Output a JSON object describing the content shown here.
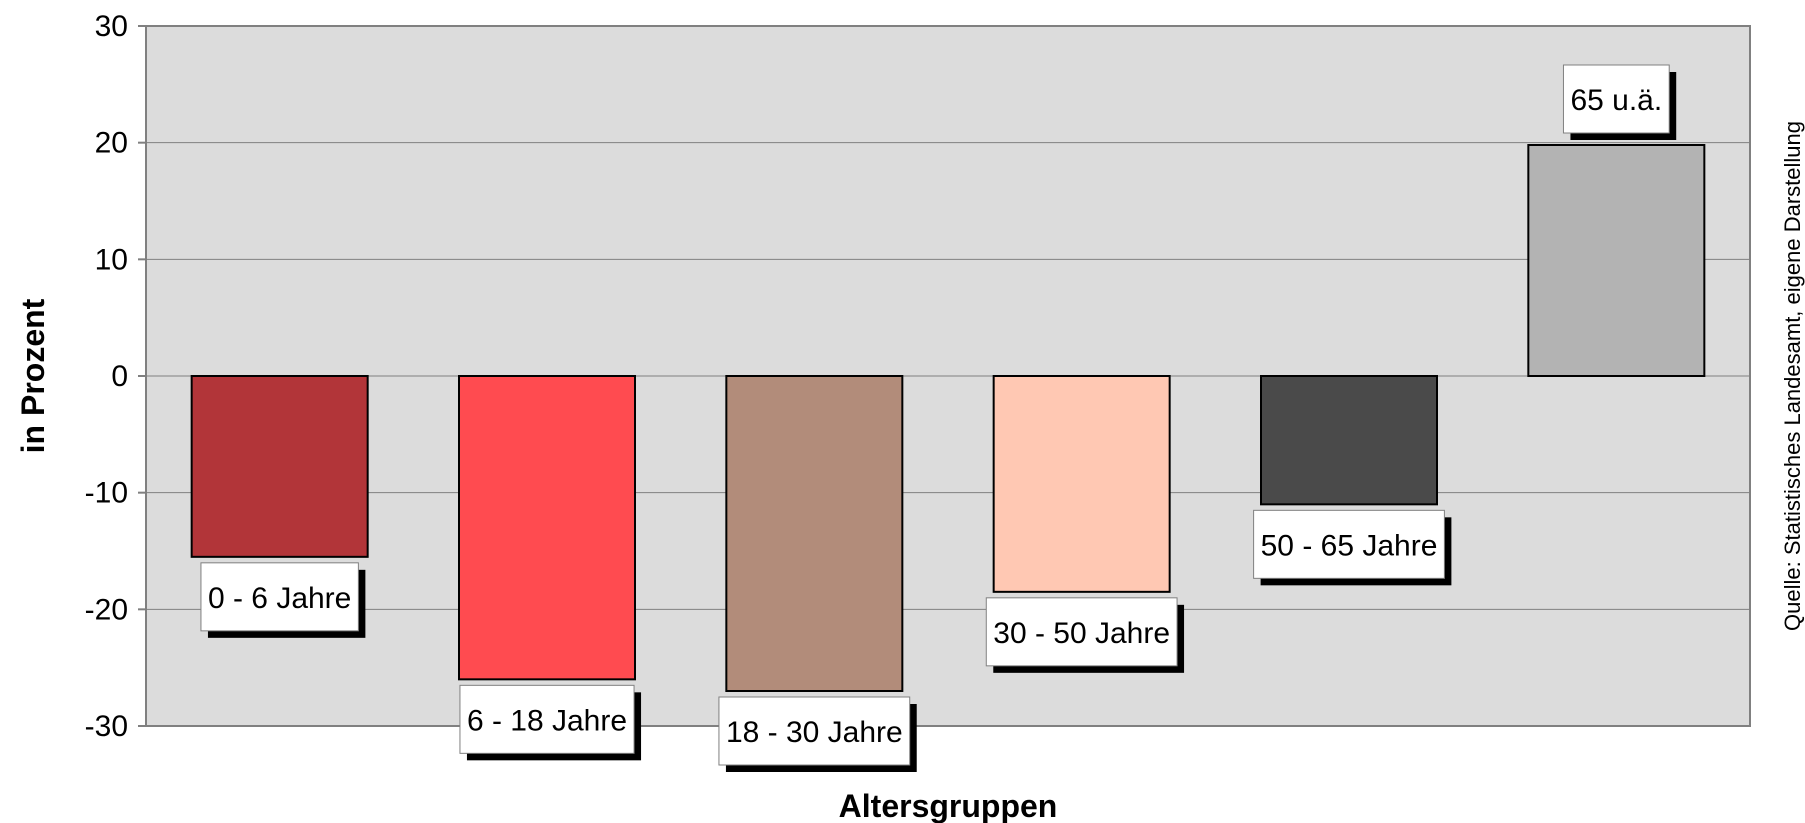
{
  "chart_data": {
    "type": "bar",
    "categories": [
      "0 - 6 Jahre",
      "6 - 18 Jahre",
      "18 - 30 Jahre",
      "30 - 50 Jahre",
      "50 - 65 Jahre",
      "65 u.ä."
    ],
    "values": [
      -15.5,
      -26,
      -27,
      -18.5,
      -11,
      19.8
    ],
    "colors": [
      "#b23539",
      "#ff4b50",
      "#b28c7a",
      "#ffc8b3",
      "#4a4a4a",
      "#b3b3b3"
    ],
    "ylim": [
      -30,
      30
    ],
    "yticks": [
      "-30",
      "-20",
      "-10",
      "0",
      "10",
      "20",
      "30"
    ],
    "xlabel": "Altersgruppen",
    "ylabel": "in Prozent",
    "source": "Quelle: Statistisches Landesamt, eigene Darstellung",
    "grid": true,
    "plot_background": "#dcdcdc"
  }
}
